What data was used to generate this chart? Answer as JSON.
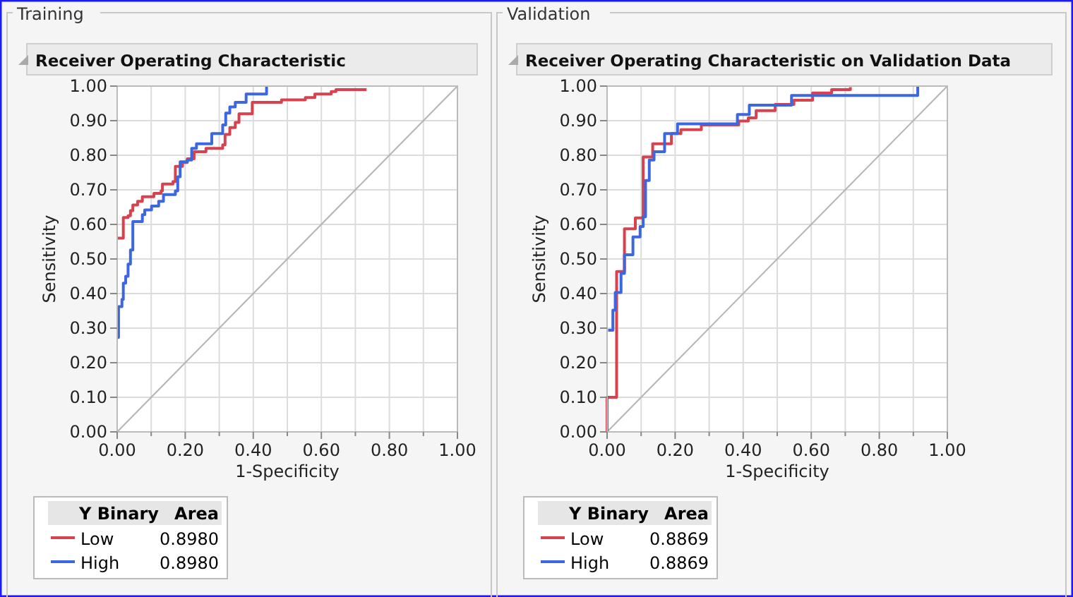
{
  "chart_data": [
    {
      "type": "step",
      "title": "Training",
      "subtitle": "Receiver Operating Characteristic",
      "xlabel": "1-Specificity",
      "ylabel": "Sensitivity",
      "legend_title": "Y Binary",
      "annotations": [
        "Area",
        "0.8980",
        "0.8980"
      ],
      "legend": "bottom left",
      "grid": true,
      "xlim": [
        0,
        1
      ],
      "ylim": [
        0,
        1
      ],
      "xticks": [
        {
          "value": 0,
          "label": "0.00"
        },
        {
          "value": 0.1,
          "label": null
        },
        {
          "value": 0.2,
          "label": "0.20"
        },
        {
          "value": 0.3,
          "label": null
        },
        {
          "value": 0.4,
          "label": "0.40"
        },
        {
          "value": 0.5,
          "label": null
        },
        {
          "value": 0.6,
          "label": "0.60"
        },
        {
          "value": 0.7,
          "label": null
        },
        {
          "value": 0.8,
          "label": "0.80"
        },
        {
          "value": 0.9,
          "label": null
        },
        {
          "value": 1,
          "label": "1.00"
        }
      ],
      "yticks": [
        {
          "value": 0,
          "label": "0.00"
        },
        {
          "value": 0.1,
          "label": "0.10"
        },
        {
          "value": 0.2,
          "label": "0.20"
        },
        {
          "value": 0.3,
          "label": "0.30"
        },
        {
          "value": 0.4,
          "label": "0.40"
        },
        {
          "value": 0.5,
          "label": "0.50"
        },
        {
          "value": 0.6,
          "label": "0.60"
        },
        {
          "value": 0.7,
          "label": "0.70"
        },
        {
          "value": 0.8,
          "label": "0.80"
        },
        {
          "value": 0.9,
          "label": "0.90"
        },
        {
          "value": 1,
          "label": "1.00"
        }
      ],
      "series": [
        {
          "type": "line",
          "color": "#b4b4b4",
          "x": [
            0,
            1
          ],
          "values": [
            0,
            1
          ]
        },
        {
          "name": "Low",
          "color": "#d8424e",
          "x": [
            0,
            0.018,
            0.032,
            0.039,
            0.046,
            0.06,
            0.074,
            0.108,
            0.129,
            0.133,
            0.164,
            0.171,
            0.192,
            0.206,
            0.226,
            0.261,
            0.31,
            0.317,
            0.331,
            0.347,
            0.358,
            0.397,
            0.483,
            0.553,
            0.581,
            0.629,
            0.643,
            0.733
          ],
          "values": [
            0.56,
            0.62,
            0.625,
            0.64,
            0.656,
            0.667,
            0.68,
            0.69,
            0.697,
            0.717,
            0.724,
            0.768,
            0.779,
            0.79,
            0.81,
            0.82,
            0.83,
            0.86,
            0.88,
            0.895,
            0.92,
            0.953,
            0.96,
            0.967,
            0.977,
            0.984,
            0.99,
            0.99
          ]
        },
        {
          "name": "High",
          "color": "#3d67e0",
          "x": [
            0,
            0.004,
            0.014,
            0.018,
            0.025,
            0.032,
            0.039,
            0.046,
            0.074,
            0.081,
            0.101,
            0.122,
            0.136,
            0.171,
            0.178,
            0.185,
            0.206,
            0.219,
            0.233,
            0.278,
            0.31,
            0.319,
            0.331,
            0.347,
            0.379,
            0.439
          ],
          "values": [
            0.273,
            0.362,
            0.383,
            0.43,
            0.45,
            0.485,
            0.526,
            0.608,
            0.628,
            0.642,
            0.653,
            0.667,
            0.686,
            0.697,
            0.738,
            0.781,
            0.786,
            0.82,
            0.833,
            0.863,
            0.888,
            0.922,
            0.94,
            0.953,
            0.977,
            1
          ]
        }
      ]
    },
    {
      "type": "step",
      "title": "Validation",
      "subtitle": "Receiver Operating Characteristic on Validation Data",
      "xlabel": "1-Specificity",
      "ylabel": "Sensitivity",
      "legend_title": "Y Binary",
      "annotations": [
        "Area",
        "0.8869",
        "0.8869"
      ],
      "legend": "bottom left",
      "grid": true,
      "xlim": [
        0,
        1
      ],
      "ylim": [
        0,
        1
      ],
      "xticks": [
        {
          "value": 0,
          "label": "0.00"
        },
        {
          "value": 0.1,
          "label": null
        },
        {
          "value": 0.2,
          "label": "0.20"
        },
        {
          "value": 0.3,
          "label": null
        },
        {
          "value": 0.4,
          "label": "0.40"
        },
        {
          "value": 0.5,
          "label": null
        },
        {
          "value": 0.6,
          "label": "0.60"
        },
        {
          "value": 0.7,
          "label": null
        },
        {
          "value": 0.8,
          "label": "0.80"
        },
        {
          "value": 0.9,
          "label": null
        },
        {
          "value": 1,
          "label": "1.00"
        }
      ],
      "yticks": [
        {
          "value": 0,
          "label": "0.00"
        },
        {
          "value": 0.1,
          "label": "0.10"
        },
        {
          "value": 0.2,
          "label": "0.20"
        },
        {
          "value": 0.3,
          "label": "0.30"
        },
        {
          "value": 0.4,
          "label": "0.40"
        },
        {
          "value": 0.5,
          "label": "0.50"
        },
        {
          "value": 0.6,
          "label": "0.60"
        },
        {
          "value": 0.7,
          "label": "0.70"
        },
        {
          "value": 0.8,
          "label": "0.80"
        },
        {
          "value": 0.9,
          "label": "0.90"
        },
        {
          "value": 1,
          "label": "1.00"
        }
      ],
      "series": [
        {
          "type": "line",
          "color": "#b4b4b4",
          "x": [
            0,
            1
          ],
          "values": [
            0,
            1
          ]
        },
        {
          "name": "Low",
          "color": "#d8424e",
          "x": [
            0,
            0,
            0.028,
            0.051,
            0.083,
            0.106,
            0.134,
            0.189,
            0.217,
            0.277,
            0.387,
            0.415,
            0.438,
            0.494,
            0.549,
            0.604,
            0.66,
            0.715
          ],
          "values": [
            0,
            0.1,
            0.464,
            0.587,
            0.619,
            0.795,
            0.833,
            0.863,
            0.874,
            0.888,
            0.899,
            0.908,
            0.929,
            0.947,
            0.959,
            0.98,
            0.99,
            0.997
          ]
        },
        {
          "name": "High",
          "color": "#3d67e0",
          "x": [
            0.003,
            0.017,
            0.024,
            0.041,
            0.051,
            0.076,
            0.097,
            0.106,
            0.113,
            0.124,
            0.138,
            0.169,
            0.207,
            0.383,
            0.418,
            0.542,
            0.913
          ],
          "values": [
            0.294,
            0.352,
            0.403,
            0.458,
            0.512,
            0.564,
            0.594,
            0.622,
            0.727,
            0.786,
            0.81,
            0.863,
            0.891,
            0.918,
            0.945,
            0.973,
            1
          ]
        }
      ]
    }
  ]
}
